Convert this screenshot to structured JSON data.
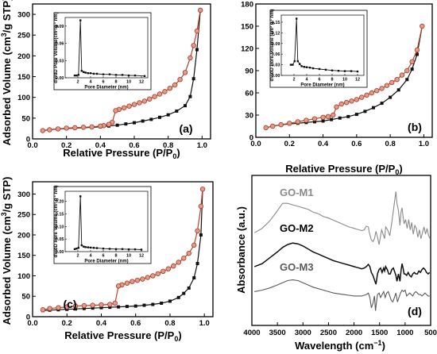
{
  "chart_data": [
    {
      "panel": "(a)",
      "type": "line",
      "xlabel": "Relative Pressure (P/P",
      "xlabel_sub": "0",
      "xlabel_end": ")",
      "ylabel": "Adsorbed Volume (cm",
      "ylabel_sup": "3",
      "ylabel_end": "/g STP)",
      "xlim": [
        0,
        1.05
      ],
      "ylim": [
        0,
        325
      ],
      "xticks": [
        "0.0",
        "0.2",
        "0.4",
        "0.6",
        "0.8",
        "1.0"
      ],
      "yticks": [
        "0",
        "50",
        "100",
        "150",
        "200",
        "250",
        "300"
      ],
      "series": [
        {
          "role": "adsorption",
          "color": "#111111",
          "x": [
            0.06,
            0.1,
            0.15,
            0.2,
            0.25,
            0.3,
            0.35,
            0.4,
            0.45,
            0.5,
            0.55,
            0.6,
            0.65,
            0.7,
            0.75,
            0.8,
            0.85,
            0.9,
            0.93,
            0.95,
            0.97,
            0.99
          ],
          "y": [
            20,
            22,
            24,
            25,
            26,
            27,
            28,
            29,
            31,
            33,
            36,
            39,
            43,
            47,
            52,
            58,
            67,
            80,
            102,
            145,
            215,
            310
          ]
        },
        {
          "role": "desorption",
          "color": "#b5442a",
          "x": [
            0.99,
            0.97,
            0.95,
            0.93,
            0.9,
            0.87,
            0.84,
            0.81,
            0.78,
            0.75,
            0.72,
            0.69,
            0.66,
            0.63,
            0.6,
            0.57,
            0.54,
            0.51,
            0.49,
            0.47,
            0.45,
            0.42,
            0.4,
            0.35,
            0.3,
            0.25,
            0.2,
            0.15,
            0.1,
            0.06
          ],
          "y": [
            310,
            260,
            225,
            195,
            160,
            143,
            130,
            122,
            114,
            108,
            102,
            96,
            91,
            87,
            83,
            79,
            75,
            71,
            68,
            40,
            35,
            32,
            31,
            29,
            28,
            27,
            26,
            24,
            22,
            20
          ]
        }
      ],
      "inset": {
        "xlabel": "Pore Diameter (nm)",
        "ylabel": "dV/dD Pore Volume(cm",
        "ylabel_tail": "/g",
        "ylabel_end": " nm)",
        "ylabel_sup1": "3",
        "ylabel_sup2": "-1",
        "xlim": [
          0,
          13
        ],
        "ylim": [
          0,
          0.105
        ],
        "xticks": [
          "2",
          "4",
          "6",
          "8",
          "10",
          "12"
        ],
        "yticks": [
          "0.00",
          "0.03",
          "0.06",
          "0.09"
        ],
        "ytick_values": [
          0,
          0.03,
          0.06,
          0.09
        ],
        "x": [
          1.5,
          1.8,
          2.1,
          2.4,
          2.6,
          2.9,
          3.2,
          3.6,
          4,
          4.5,
          5,
          6,
          7,
          8,
          9,
          10,
          11,
          12.5
        ],
        "y": [
          0.004,
          0.004,
          0.005,
          0.1,
          0.012,
          0.01,
          0.009,
          0.008,
          0.008,
          0.007,
          0.007,
          0.006,
          0.006,
          0.005,
          0.005,
          0.004,
          0.004,
          0.003
        ]
      }
    },
    {
      "panel": "(b)",
      "type": "line",
      "xlabel": "Relative Pressure (P/P",
      "xlabel_sub": "0",
      "xlabel_end": ")",
      "xlim": [
        0,
        1.05
      ],
      "ylim": [
        0,
        180
      ],
      "xticks": [
        "0.0",
        "0.2",
        "0.4",
        "0.6",
        "0.8",
        "1.0"
      ],
      "yticks": [
        "0",
        "30",
        "60",
        "90",
        "120",
        "150",
        "180"
      ],
      "series": [
        {
          "role": "adsorption",
          "color": "#111111",
          "x": [
            0.06,
            0.1,
            0.15,
            0.2,
            0.25,
            0.3,
            0.35,
            0.4,
            0.45,
            0.5,
            0.55,
            0.6,
            0.65,
            0.7,
            0.75,
            0.8,
            0.85,
            0.9,
            0.93,
            0.96,
            0.99
          ],
          "y": [
            13,
            15,
            17,
            18,
            19,
            20,
            21,
            22,
            24,
            26,
            28,
            31,
            35,
            40,
            46,
            54,
            64,
            78,
            92,
            112,
            150
          ]
        },
        {
          "role": "desorption",
          "color": "#b5442a",
          "x": [
            0.99,
            0.96,
            0.93,
            0.9,
            0.87,
            0.84,
            0.81,
            0.78,
            0.75,
            0.72,
            0.69,
            0.66,
            0.63,
            0.6,
            0.57,
            0.54,
            0.51,
            0.48,
            0.46,
            0.43,
            0.4,
            0.35,
            0.3,
            0.25,
            0.2,
            0.15,
            0.1,
            0.06
          ],
          "y": [
            150,
            118,
            102,
            90,
            84,
            78,
            74,
            70,
            66,
            63,
            60,
            57,
            54,
            51,
            49,
            47,
            45,
            41,
            30,
            28,
            27,
            25,
            23,
            21,
            19,
            17,
            15,
            13
          ]
        }
      ],
      "inset": {
        "xlabel": "Pore Diameter (nm)",
        "ylabel": "dV/dD Pore Volume (cm",
        "ylabel_tail": " g",
        "ylabel_end": " nm)",
        "ylabel_sup1": "3",
        "ylabel_sup2": "-1",
        "xlim": [
          0,
          13
        ],
        "ylim": [
          0,
          0.17
        ],
        "xticks": [
          "2",
          "4",
          "6",
          "8",
          "10",
          "12"
        ],
        "yticks": [
          "0.00",
          "0.03",
          "0.06",
          "0.09",
          "0.12",
          "0.15"
        ],
        "ytick_values": [
          0,
          0.03,
          0.06,
          0.09,
          0.12,
          0.15
        ],
        "x": [
          1.5,
          1.8,
          2.1,
          2.4,
          2.6,
          2.9,
          3.2,
          3.6,
          4,
          4.5,
          5,
          6,
          7,
          8,
          9,
          10,
          11,
          12
        ],
        "y": [
          0.03,
          0.03,
          0.04,
          0.16,
          0.04,
          0.032,
          0.026,
          0.024,
          0.023,
          0.022,
          0.02,
          0.018,
          0.016,
          0.014,
          0.013,
          0.012,
          0.012,
          0.011
        ]
      }
    },
    {
      "panel": "(c)",
      "type": "line",
      "xlabel": "Relative Pressure (P/P",
      "xlabel_sub": "0",
      "xlabel_end": ")",
      "ylabel": "Adsorbed Volume (cm",
      "ylabel_sup": "3",
      "ylabel_end": "/g STP)",
      "xlim": [
        0,
        1.05
      ],
      "ylim": [
        0,
        330
      ],
      "xticks": [
        "0.0",
        "0.2",
        "0.4",
        "0.6",
        "0.8",
        "1.0"
      ],
      "yticks": [
        "0",
        "50",
        "100",
        "150",
        "200",
        "250",
        "300"
      ],
      "series": [
        {
          "role": "adsorption",
          "color": "#111111",
          "x": [
            0.06,
            0.1,
            0.15,
            0.2,
            0.25,
            0.3,
            0.35,
            0.4,
            0.45,
            0.5,
            0.55,
            0.6,
            0.65,
            0.7,
            0.75,
            0.8,
            0.85,
            0.88,
            0.91,
            0.94,
            0.96,
            0.98,
            0.99
          ],
          "y": [
            15,
            16,
            17,
            18,
            19,
            20,
            21,
            22,
            23,
            24,
            25,
            26,
            28,
            30,
            33,
            38,
            47,
            57,
            70,
            95,
            130,
            200,
            312
          ]
        },
        {
          "role": "desorption",
          "color": "#b5442a",
          "x": [
            0.99,
            0.98,
            0.96,
            0.94,
            0.91,
            0.88,
            0.85,
            0.82,
            0.79,
            0.76,
            0.73,
            0.7,
            0.67,
            0.64,
            0.61,
            0.58,
            0.55,
            0.52,
            0.5,
            0.48,
            0.45,
            0.4,
            0.35,
            0.3,
            0.25,
            0.2,
            0.15,
            0.1,
            0.06
          ],
          "y": [
            312,
            270,
            210,
            175,
            155,
            143,
            133,
            124,
            117,
            111,
            105,
            100,
            96,
            92,
            89,
            86,
            82,
            78,
            75,
            33,
            30,
            29,
            28,
            27,
            26,
            24,
            22,
            20,
            17
          ]
        }
      ],
      "inset": {
        "xlabel": "Pore Diameter (nm)",
        "ylabel": "dV/dD Pore Volume (cm",
        "ylabel_tail": " g",
        "ylabel_end": " nm)",
        "ylabel_sup1": "3",
        "ylabel_sup2": "-1",
        "xlim": [
          0,
          13
        ],
        "ylim": [
          0,
          0.24
        ],
        "xticks": [
          "2",
          "4",
          "6",
          "8",
          "10",
          "12"
        ],
        "yticks": [
          "0.00",
          "0.05",
          "0.10",
          "0.15",
          "0.20"
        ],
        "ytick_values": [
          0,
          0.05,
          0.1,
          0.15,
          0.2
        ],
        "x": [
          1.5,
          1.8,
          2.1,
          2.4,
          2.6,
          2.9,
          3.2,
          3.6,
          4,
          4.5,
          5,
          6,
          7,
          8,
          9,
          10,
          11,
          12
        ],
        "y": [
          0.01,
          0.012,
          0.015,
          0.22,
          0.025,
          0.02,
          0.018,
          0.017,
          0.016,
          0.015,
          0.014,
          0.012,
          0.011,
          0.01,
          0.01,
          0.009,
          0.009,
          0.008
        ]
      }
    },
    {
      "panel": "(d)",
      "type": "line",
      "xlabel": "Wavelength (cm",
      "xlabel_sup": "−1",
      "xlabel_end": ")",
      "ylabel": "Absorbance (a.u.)",
      "xlim": [
        4000,
        500
      ],
      "xticks": [
        "4000",
        "3500",
        "3000",
        "2500",
        "2000",
        "1500",
        "1000",
        "500"
      ],
      "tick_values": [
        4000,
        3500,
        3000,
        2500,
        2000,
        1500,
        1000,
        500
      ],
      "series": [
        {
          "name": "GO-M1",
          "color": "#8a8a8a",
          "x": [
            3950,
            3800,
            3650,
            3500,
            3400,
            3300,
            3200,
            3100,
            3000,
            2900,
            2800,
            2700,
            2600,
            2500,
            2400,
            2300,
            2200,
            2100,
            2000,
            1950,
            1900,
            1850,
            1800,
            1760,
            1720,
            1700,
            1660,
            1630,
            1600,
            1570,
            1540,
            1510,
            1480,
            1460,
            1430,
            1400,
            1380,
            1360,
            1330,
            1300,
            1260,
            1230,
            1200,
            1180,
            1160,
            1130,
            1100,
            1080,
            1060,
            1040,
            1020,
            990,
            960,
            930,
            900,
            870,
            840,
            810,
            780,
            750,
            720,
            690,
            660,
            630,
            600,
            570,
            540,
            510
          ],
          "y": [
            5.3,
            5.6,
            6.1,
            6.8,
            7.3,
            7.3,
            7.2,
            7.1,
            7.0,
            6.9,
            6.7,
            6.6,
            6.4,
            6.3,
            6.15,
            6.0,
            5.85,
            5.7,
            5.6,
            5.55,
            5.5,
            5.45,
            5.5,
            5.75,
            5.7,
            5.3,
            4.8,
            4.7,
            4.9,
            5.4,
            5.0,
            4.5,
            5.1,
            5.5,
            5.2,
            4.9,
            5.7,
            5.6,
            5.4,
            5.1,
            6.0,
            6.8,
            7.6,
            8.1,
            7.3,
            6.8,
            5.8,
            6.7,
            7.0,
            6.4,
            5.9,
            6.2,
            5.6,
            6.2,
            5.5,
            6.0,
            5.2,
            5.8,
            5.6,
            5.0,
            5.5,
            4.9,
            5.3,
            5.7,
            5.2,
            5.6,
            5.1,
            4.9
          ]
        },
        {
          "name": "GO-M2",
          "color": "#111111",
          "x": [
            3950,
            3800,
            3650,
            3500,
            3400,
            3300,
            3200,
            3100,
            3000,
            2900,
            2800,
            2700,
            2600,
            2500,
            2400,
            2300,
            2200,
            2100,
            2000,
            1950,
            1900,
            1850,
            1800,
            1760,
            1720,
            1690,
            1660,
            1630,
            1600,
            1570,
            1540,
            1510,
            1480,
            1450,
            1420,
            1400,
            1380,
            1350,
            1320,
            1290,
            1260,
            1230,
            1200,
            1180,
            1160,
            1130,
            1100,
            1080,
            1060,
            1040,
            1020,
            1000,
            970,
            940,
            910,
            880,
            850,
            820,
            790,
            760,
            730,
            700,
            670,
            640,
            610,
            580,
            550,
            520
          ],
          "y": [
            3.0,
            3.2,
            3.6,
            4.0,
            4.3,
            4.5,
            4.6,
            4.55,
            4.4,
            4.2,
            4.0,
            3.85,
            3.7,
            3.55,
            3.4,
            3.3,
            3.2,
            3.1,
            3.0,
            2.95,
            2.9,
            2.85,
            2.9,
            3.0,
            3.15,
            3.0,
            2.6,
            2.4,
            2.1,
            1.8,
            2.5,
            2.8,
            2.9,
            2.6,
            2.9,
            2.7,
            3.0,
            2.8,
            2.5,
            2.5,
            2.8,
            2.9,
            2.6,
            2.4,
            2.0,
            2.5,
            2.0,
            2.7,
            3.2,
            2.9,
            2.5,
            2.5,
            2.4,
            2.6,
            2.4,
            2.3,
            2.5,
            2.6,
            2.5,
            2.5,
            2.7,
            2.6,
            2.8,
            2.9,
            2.8,
            2.6,
            2.5,
            2.6
          ]
        },
        {
          "name": "GO-M3",
          "color": "#5a5a5a",
          "x": [
            3950,
            3800,
            3650,
            3500,
            3400,
            3300,
            3200,
            3100,
            3000,
            2900,
            2800,
            2700,
            2600,
            2500,
            2400,
            2300,
            2200,
            2100,
            2000,
            1950,
            1900,
            1850,
            1800,
            1760,
            1720,
            1690,
            1660,
            1630,
            1600,
            1580,
            1560,
            1540,
            1510,
            1480,
            1450,
            1420,
            1390,
            1360,
            1330,
            1300,
            1270,
            1240,
            1210,
            1180,
            1150,
            1120,
            1090,
            1060,
            1030,
            1000,
            970,
            940,
            910,
            880,
            850,
            820,
            790,
            760,
            730,
            700,
            670,
            640,
            610,
            580,
            550,
            520
          ],
          "y": [
            1.3,
            1.4,
            1.55,
            1.75,
            1.9,
            2.05,
            2.1,
            2.05,
            1.9,
            1.75,
            1.6,
            1.5,
            1.4,
            1.3,
            1.2,
            1.15,
            1.1,
            1.05,
            1.0,
            1.0,
            1.0,
            1.0,
            1.05,
            1.1,
            1.2,
            0.9,
            0.2,
            0.5,
            1.0,
            0.0,
            0.6,
            1.1,
            1.2,
            0.9,
            1.1,
            1.3,
            0.9,
            1.2,
            1.3,
            1.0,
            0.7,
            0.6,
            0.9,
            1.2,
            0.6,
            0.9,
            1.2,
            1.4,
            1.3,
            1.4,
            1.0,
            1.1,
            1.2,
            1.1,
            1.0,
            1.2,
            1.3,
            1.2,
            1.1,
            1.1,
            1.0,
            1.1,
            1.2,
            1.1,
            1.0,
            1.0
          ]
        }
      ]
    }
  ]
}
